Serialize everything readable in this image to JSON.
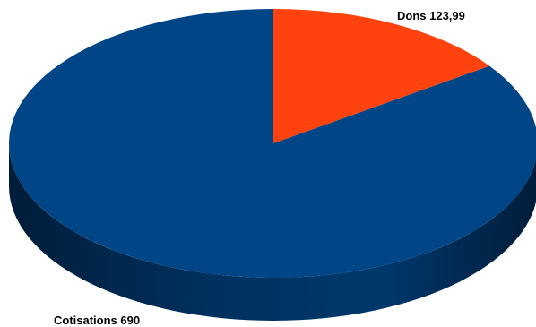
{
  "chart_data": {
    "type": "pie",
    "style": "3d",
    "slices": [
      {
        "name": "Cotisations",
        "value": 690,
        "label": "Cotisations 690",
        "color": "#004586"
      },
      {
        "name": "Dons",
        "value": 123.99,
        "label": "Dons  123,99",
        "color": "#ff420e"
      }
    ],
    "legend": "none"
  }
}
